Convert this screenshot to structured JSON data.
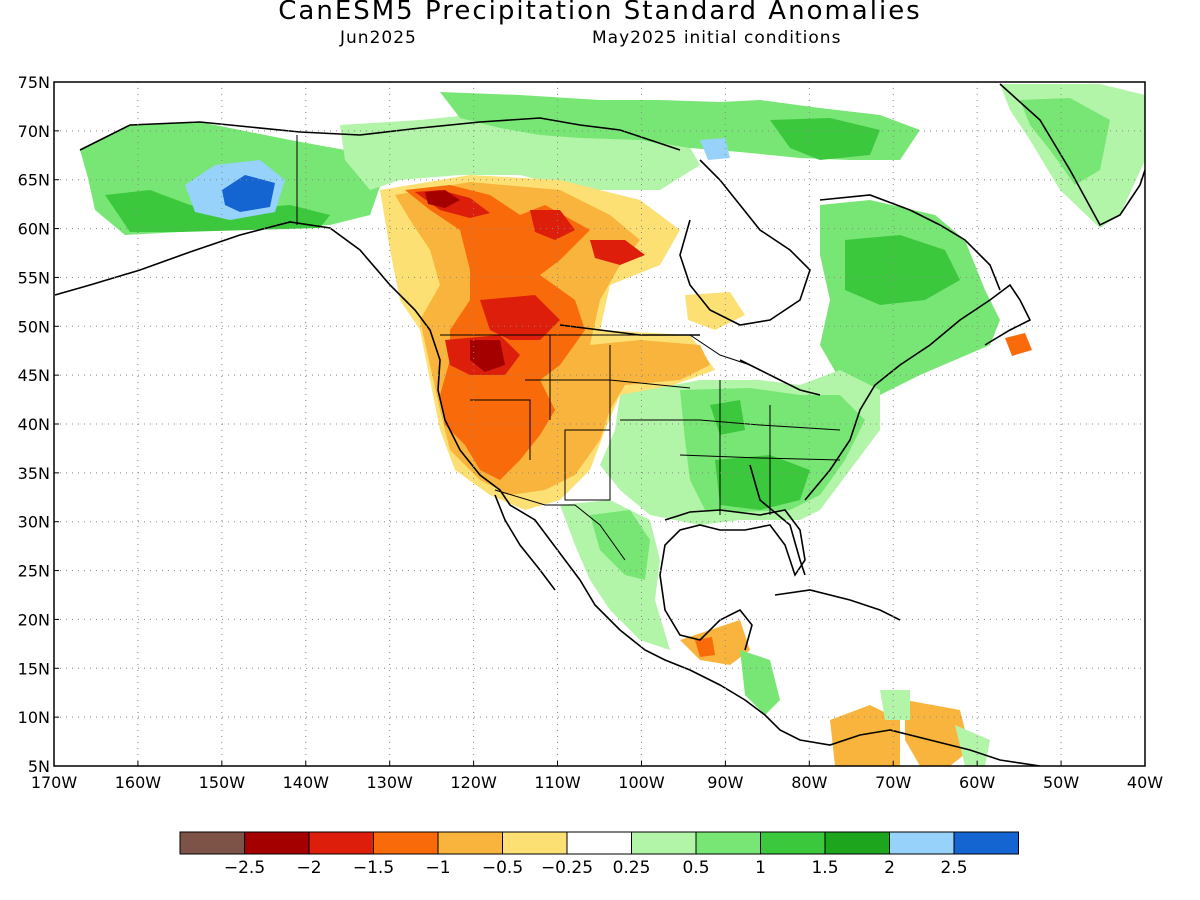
{
  "title": "CanESM5 Precipitation Standard Anomalies",
  "subtitle_left": "Jun2025",
  "subtitle_right": "May2025 initial conditions",
  "map": {
    "lat_labels": [
      "75N",
      "70N",
      "65N",
      "60N",
      "55N",
      "50N",
      "45N",
      "40N",
      "35N",
      "30N",
      "25N",
      "20N",
      "15N",
      "10N",
      "5N"
    ],
    "lon_labels": [
      "170W",
      "160W",
      "150W",
      "140W",
      "130W",
      "120W",
      "110W",
      "100W",
      "90W",
      "80W",
      "70W",
      "60W",
      "50W",
      "40W"
    ],
    "lat_range": [
      5,
      75
    ],
    "lon_range": [
      -170,
      -40
    ]
  },
  "colorbar": {
    "colors": [
      "#7e5347",
      "#a50000",
      "#dc1e0a",
      "#f86a0a",
      "#f8b43c",
      "#fce074",
      "#ffffff",
      "#b2f4a8",
      "#78e674",
      "#3cc83c",
      "#1ea51e",
      "#96d2fa",
      "#1464d2"
    ],
    "labels": [
      "-2.5",
      "-2",
      "-1.5",
      "-1",
      "-0.5",
      "-0.25",
      "0.25",
      "0.5",
      "1",
      "1.5",
      "2",
      "2.5"
    ]
  },
  "colors": {
    "strong_dry": "#a50000",
    "dry": "#f86a0a",
    "mild_dry": "#f8b43c",
    "mild_wet": "#b2f4a8",
    "wet": "#78e674",
    "very_wet": "#3cc83c",
    "extreme_wet": "#1464d2"
  }
}
